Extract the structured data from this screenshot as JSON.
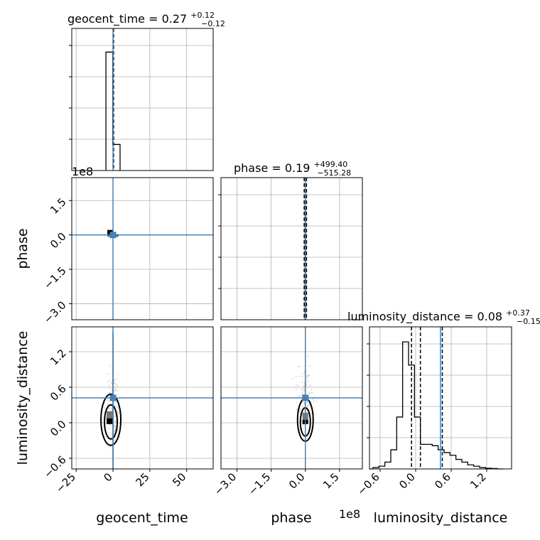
{
  "chart_data": {
    "type": "corner",
    "parameters": [
      "geocent_time",
      "phase",
      "luminosity_distance"
    ],
    "truths": {
      "geocent_time": 0,
      "phase": 0,
      "luminosity_distance": 0.42
    },
    "truth_color": "#4682b4",
    "grid": true,
    "offset_labels": {
      "phase_y": "1e8",
      "phase_x": "1e8"
    },
    "axis_ranges": {
      "geocent_time": [
        -28,
        68
      ],
      "phase": [
        -370000000,
        250000000
      ],
      "luminosity_distance": [
        -0.78,
        1.62
      ]
    },
    "titles": [
      {
        "param": "geocent_time",
        "base": "geocent_time = 0.27",
        "plus": "+0.12",
        "minus": "−0.12"
      },
      {
        "param": "phase",
        "base": "phase = 0.19",
        "plus": "+499.40",
        "minus": "−515.28"
      },
      {
        "param": "luminosity_distance",
        "base": "luminosity_distance = 0.08",
        "plus": "+0.37",
        "minus": "−0.15"
      }
    ],
    "ticks": {
      "geocent_time": {
        "values": [
          -25,
          0,
          25,
          50
        ],
        "labels": [
          "−25",
          "0",
          "25",
          "50"
        ]
      },
      "phase": {
        "values": [
          -300000000,
          -150000000,
          0,
          150000000
        ],
        "labels": [
          "−3.0",
          "−1.5",
          "0.0",
          "1.5"
        ]
      },
      "luminosity_distance": {
        "values": [
          -0.6,
          0.0,
          0.6,
          1.2
        ],
        "labels": [
          "−0.6",
          "0.0",
          "0.6",
          "1.2"
        ]
      }
    },
    "diag_quantile_lines": {
      "geocent_time": [
        0.15,
        0.27,
        0.39
      ],
      "phase": [
        -5000000,
        190000,
        5000000
      ],
      "luminosity_distance": [
        -0.07,
        0.08,
        0.45
      ]
    },
    "hist_geocent_time": {
      "edges": [
        -4.8,
        -0.2,
        4.8
      ],
      "counts": [
        1.0,
        0.22
      ],
      "ymax": 1.2
    },
    "hist_phase": {
      "edges": [
        -1000000,
        0,
        1000000
      ],
      "counts": [
        1.0,
        0.97
      ],
      "ymax": 1.22
    },
    "hist_luminosity_distance": {
      "edges": [
        -0.78,
        -0.72,
        -0.62,
        -0.52,
        -0.42,
        -0.32,
        -0.22,
        -0.12,
        -0.02,
        0.08,
        0.18,
        0.28,
        0.38,
        0.48,
        0.58,
        0.68,
        0.78,
        0.88,
        0.98,
        1.08,
        1.18,
        1.28,
        1.38,
        1.48
      ],
      "counts": [
        0,
        0.01,
        0.02,
        0.05,
        0.14,
        0.38,
        0.93,
        0.76,
        0.38,
        0.18,
        0.18,
        0.17,
        0.14,
        0.12,
        0.1,
        0.07,
        0.05,
        0.03,
        0.02,
        0.01,
        0.005,
        0.003,
        0
      ],
      "ymax": 1.04
    }
  }
}
